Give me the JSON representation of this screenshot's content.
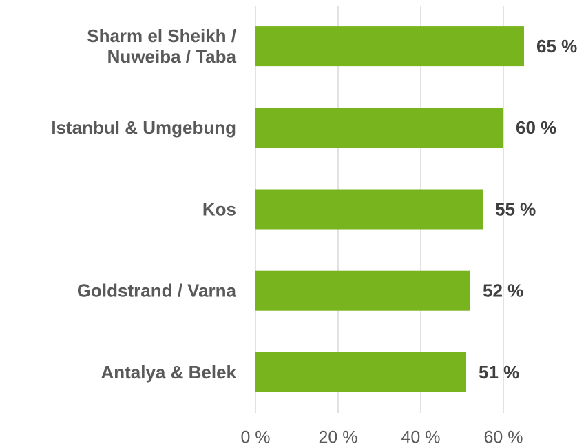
{
  "chart_data": {
    "type": "bar",
    "orientation": "horizontal",
    "categories": [
      "Sharm el Sheikh /\nNuweiba / Taba",
      "Istanbul & Umgebung",
      "Kos",
      "Goldstrand / Varna",
      "Antalya & Belek"
    ],
    "values": [
      65,
      60,
      55,
      52,
      51
    ],
    "value_labels": [
      "65 %",
      "60 %",
      "55 %",
      "52 %",
      "51 %"
    ],
    "color": "#78b41e",
    "xlim": [
      0,
      80
    ],
    "xticks": [
      {
        "value": 0,
        "label": "0 %"
      },
      {
        "value": 20,
        "label": "20 %"
      },
      {
        "value": 40,
        "label": "40 %"
      },
      {
        "value": 60,
        "label": "60 %"
      }
    ],
    "grid": true
  }
}
